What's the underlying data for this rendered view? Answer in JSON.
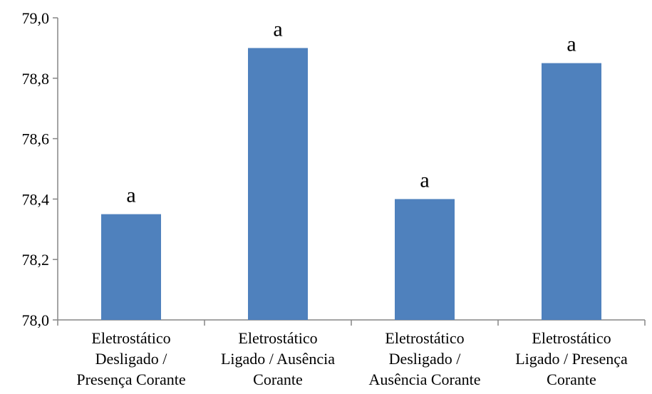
{
  "chart_data": {
    "type": "bar",
    "categories": [
      [
        "Eletrostático",
        "Desligado /",
        "Presença Corante"
      ],
      [
        "Eletrostático",
        "Ligado / Ausência",
        "Corante"
      ],
      [
        "Eletrostático",
        "Desligado /",
        "Ausência Corante"
      ],
      [
        "Eletrostático",
        "Ligado / Presença",
        "Corante"
      ]
    ],
    "values": [
      78.35,
      78.9,
      78.4,
      78.85
    ],
    "data_labels": [
      "a",
      "a",
      "a",
      "a"
    ],
    "title": "",
    "xlabel": "",
    "ylabel": "",
    "ylim": [
      78.0,
      79.0
    ],
    "yticks": [
      78.0,
      78.2,
      78.4,
      78.6,
      78.8,
      79.0
    ],
    "ytick_labels": [
      "78,0",
      "78,2",
      "78,4",
      "78,6",
      "78,8",
      "79,0"
    ],
    "grid": false,
    "legend": "none",
    "bar_color": "#4F81BD",
    "axis_color": "#868686"
  }
}
